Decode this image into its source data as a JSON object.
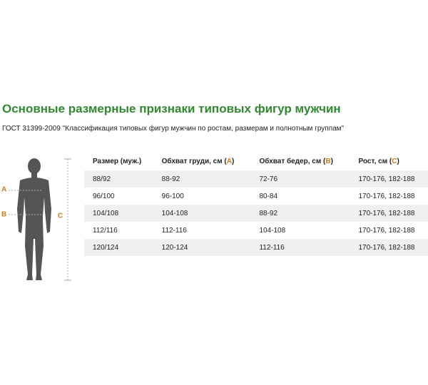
{
  "header": {
    "title": "Основные размерные признаки типовых фигур мужчин",
    "subtitle": "ГОСТ 31399-2009 \"Классификация типовых фигур мужчин по ростам, размерам и полнотным группам\""
  },
  "figure": {
    "labels": [
      "A",
      "B",
      "C"
    ]
  },
  "table": {
    "columns": [
      {
        "before": "Размер (муж.)"
      },
      {
        "before": "Обхват груди, см (",
        "letter": "A",
        "after": ")"
      },
      {
        "before": "Обхват бедер, см (",
        "letter": "B",
        "after": ")"
      },
      {
        "before": "Рост, см (",
        "letter": "C",
        "after": ")"
      }
    ],
    "rows": [
      [
        "88/92",
        "88-92",
        "72-76",
        "170-176, 182-188"
      ],
      [
        "96/100",
        "96-100",
        "80-84",
        "170-176, 182-188"
      ],
      [
        "104/108",
        "104-108",
        "88-92",
        "170-176, 182-188"
      ],
      [
        "112/116",
        "112-116",
        "104-108",
        "170-176, 182-188"
      ],
      [
        "120/124",
        "120-124",
        "112-116",
        "170-176, 182-188"
      ]
    ]
  }
}
